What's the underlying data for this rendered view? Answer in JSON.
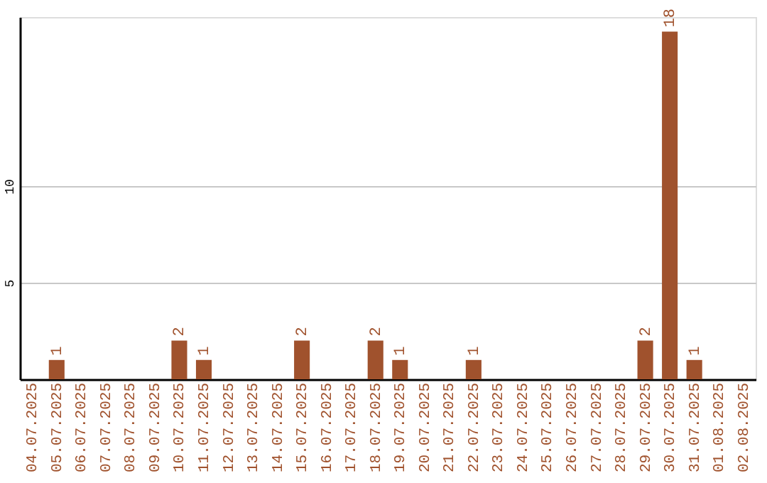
{
  "chart_data": {
    "type": "bar",
    "categories": [
      "04.07.2025",
      "05.07.2025",
      "06.07.2025",
      "07.07.2025",
      "08.07.2025",
      "09.07.2025",
      "10.07.2025",
      "11.07.2025",
      "12.07.2025",
      "13.07.2025",
      "14.07.2025",
      "15.07.2025",
      "16.07.2025",
      "17.07.2025",
      "18.07.2025",
      "19.07.2025",
      "20.07.2025",
      "21.07.2025",
      "22.07.2025",
      "23.07.2025",
      "24.07.2025",
      "25.07.2025",
      "26.07.2025",
      "27.07.2025",
      "28.07.2025",
      "29.07.2025",
      "30.07.2025",
      "31.07.2025",
      "01.08.2025",
      "02.08.2025"
    ],
    "values": [
      0,
      1,
      0,
      0,
      0,
      0,
      2,
      1,
      0,
      0,
      0,
      2,
      0,
      0,
      2,
      1,
      0,
      0,
      1,
      0,
      0,
      0,
      0,
      0,
      0,
      2,
      18,
      1,
      0,
      0
    ],
    "value_labels": [
      null,
      "1",
      null,
      null,
      null,
      null,
      "2",
      "1",
      null,
      null,
      null,
      "2",
      null,
      null,
      "2",
      "1",
      null,
      null,
      "1",
      null,
      null,
      null,
      null,
      null,
      null,
      "2",
      "18",
      "1",
      null,
      null
    ],
    "color": "#a0522d",
    "ylim": [
      0,
      18.75
    ],
    "yticks": [
      5,
      10
    ],
    "grid": "y"
  }
}
